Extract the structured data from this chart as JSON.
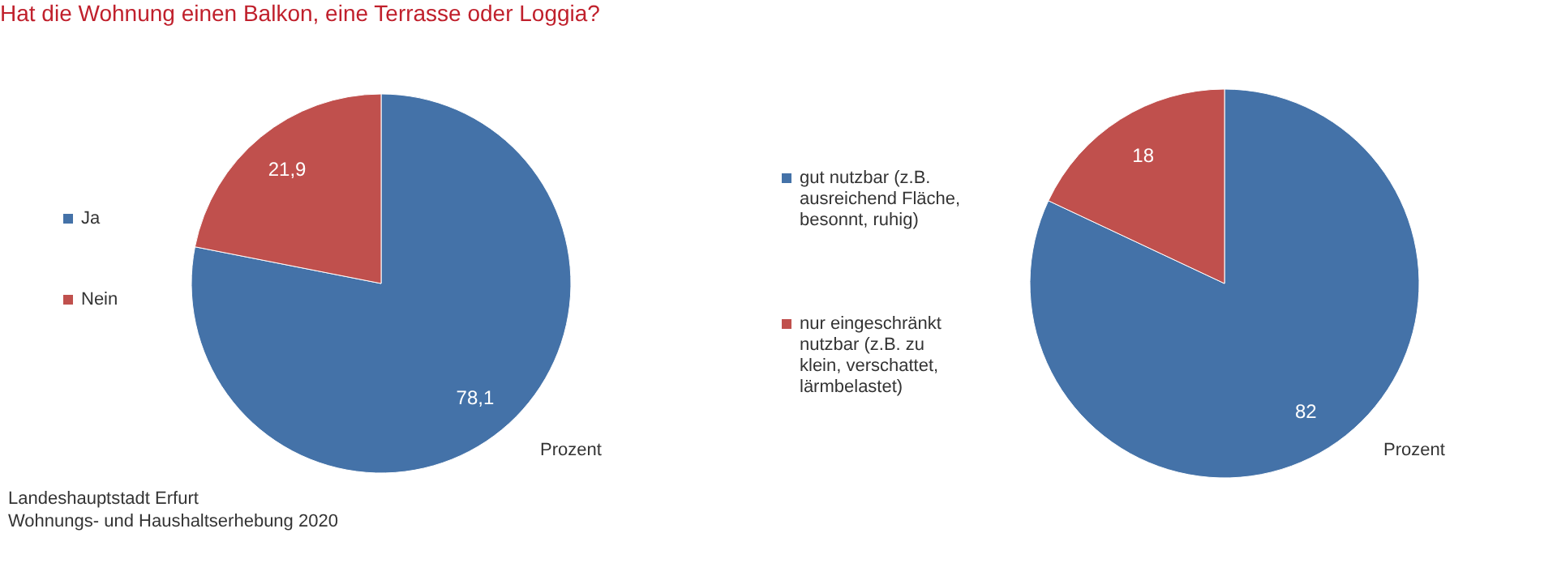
{
  "chart_data": [
    {
      "type": "pie",
      "title": "Hat die Wohnung einen Balkon, eine Terrasse oder Loggia?",
      "categories": [
        "Ja",
        "Nein"
      ],
      "values": [
        78.1,
        21.9
      ],
      "colors": [
        "#4472a8",
        "#c0504d"
      ],
      "value_labels": [
        "78,1",
        "21,9"
      ],
      "legend": "left",
      "annotations": [
        "Prozent",
        "Landeshauptstadt Erfurt",
        "Wohnungs- und Haushaltserhebung 2020"
      ]
    },
    {
      "type": "pie",
      "categories": [
        "gut nutzbar (z.B. ausreichend Fläche, besonnt, ruhig)",
        "nur eingeschränkt nutzbar (z.B. zu klein, verschattet, lärmbelastet)"
      ],
      "values": [
        82,
        18
      ],
      "colors": [
        "#4472a8",
        "#c0504d"
      ],
      "data_labels": true,
      "legend": "left",
      "annotations": [
        "Prozent"
      ]
    }
  ]
}
